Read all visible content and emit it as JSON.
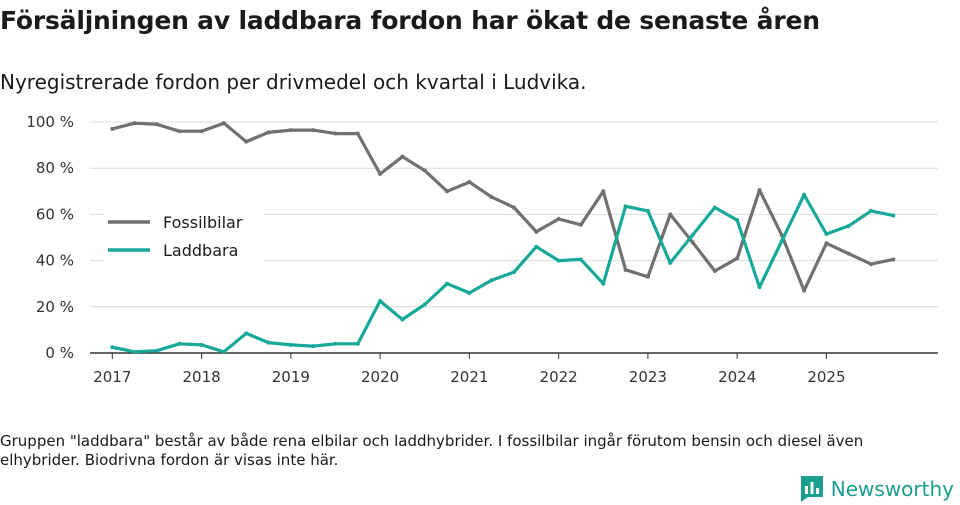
{
  "header": {
    "title": "Försäljningen av laddbara fordon har ökat de senaste åren",
    "subtitle": "Nyregistrerade fordon per drivmedel och kvartal i Ludvika."
  },
  "footnote": "Gruppen \"laddbara\" består av både rena elbilar och laddhybrider. I fossilbilar ingår förutom bensin och diesel även elhybrider. Biodrivna fordon är visas inte här.",
  "brand": {
    "name": "Newsworthy",
    "icon": "newsworthy-logo-icon",
    "color": "#1b9d8f"
  },
  "chart_data": {
    "type": "line",
    "title": "Försäljningen av laddbara fordon har ökat de senaste åren",
    "xlabel": "",
    "ylabel": "",
    "ylim": [
      0,
      100
    ],
    "xlim": [
      2016.75,
      2026.25
    ],
    "y_ticks": [
      0,
      20,
      40,
      60,
      80,
      100
    ],
    "y_tick_labels": [
      "0 %",
      "20 %",
      "40 %",
      "60 %",
      "80 %",
      "100 %"
    ],
    "x_ticks": [
      2017,
      2018,
      2019,
      2020,
      2021,
      2022,
      2023,
      2024,
      2025
    ],
    "x_tick_labels": [
      "2017",
      "2018",
      "2019",
      "2020",
      "2021",
      "2022",
      "2023",
      "2024",
      "2025"
    ],
    "grid": true,
    "legend_position": "left",
    "x": [
      2017.0,
      2017.25,
      2017.5,
      2017.75,
      2018.0,
      2018.25,
      2018.5,
      2018.75,
      2019.0,
      2019.25,
      2019.5,
      2019.75,
      2020.0,
      2020.25,
      2020.5,
      2020.75,
      2021.0,
      2021.25,
      2021.5,
      2021.75,
      2022.0,
      2022.25,
      2022.5,
      2022.75,
      2023.0,
      2023.25,
      2023.5,
      2023.75,
      2024.0,
      2024.25,
      2024.5,
      2024.75,
      2025.0,
      2025.25,
      2025.5,
      2025.75
    ],
    "series": [
      {
        "name": "Fossilbilar",
        "color": "#707070",
        "values": [
          97,
          99.5,
          99,
          96,
          96,
          99.5,
          91.5,
          95.5,
          96.5,
          96.5,
          95,
          95,
          77.5,
          85,
          79,
          70,
          74,
          67.5,
          63,
          52.5,
          58,
          55.5,
          70,
          36,
          33,
          60,
          48,
          35.5,
          41,
          70.5,
          51,
          27,
          47.5,
          43,
          38.5,
          40.5
        ]
      },
      {
        "name": "Laddbara",
        "color": "#17a89a",
        "values": [
          2.5,
          0.5,
          1,
          4,
          3.5,
          0.5,
          8.5,
          4.5,
          3.5,
          3,
          4,
          4,
          22.5,
          14.5,
          21,
          30,
          26,
          31.5,
          35,
          46,
          40,
          40.5,
          30,
          63.5,
          61.5,
          39,
          51,
          63,
          57.5,
          28.5,
          48.5,
          68.5,
          51.5,
          55,
          61.5,
          59.5
        ]
      }
    ]
  }
}
